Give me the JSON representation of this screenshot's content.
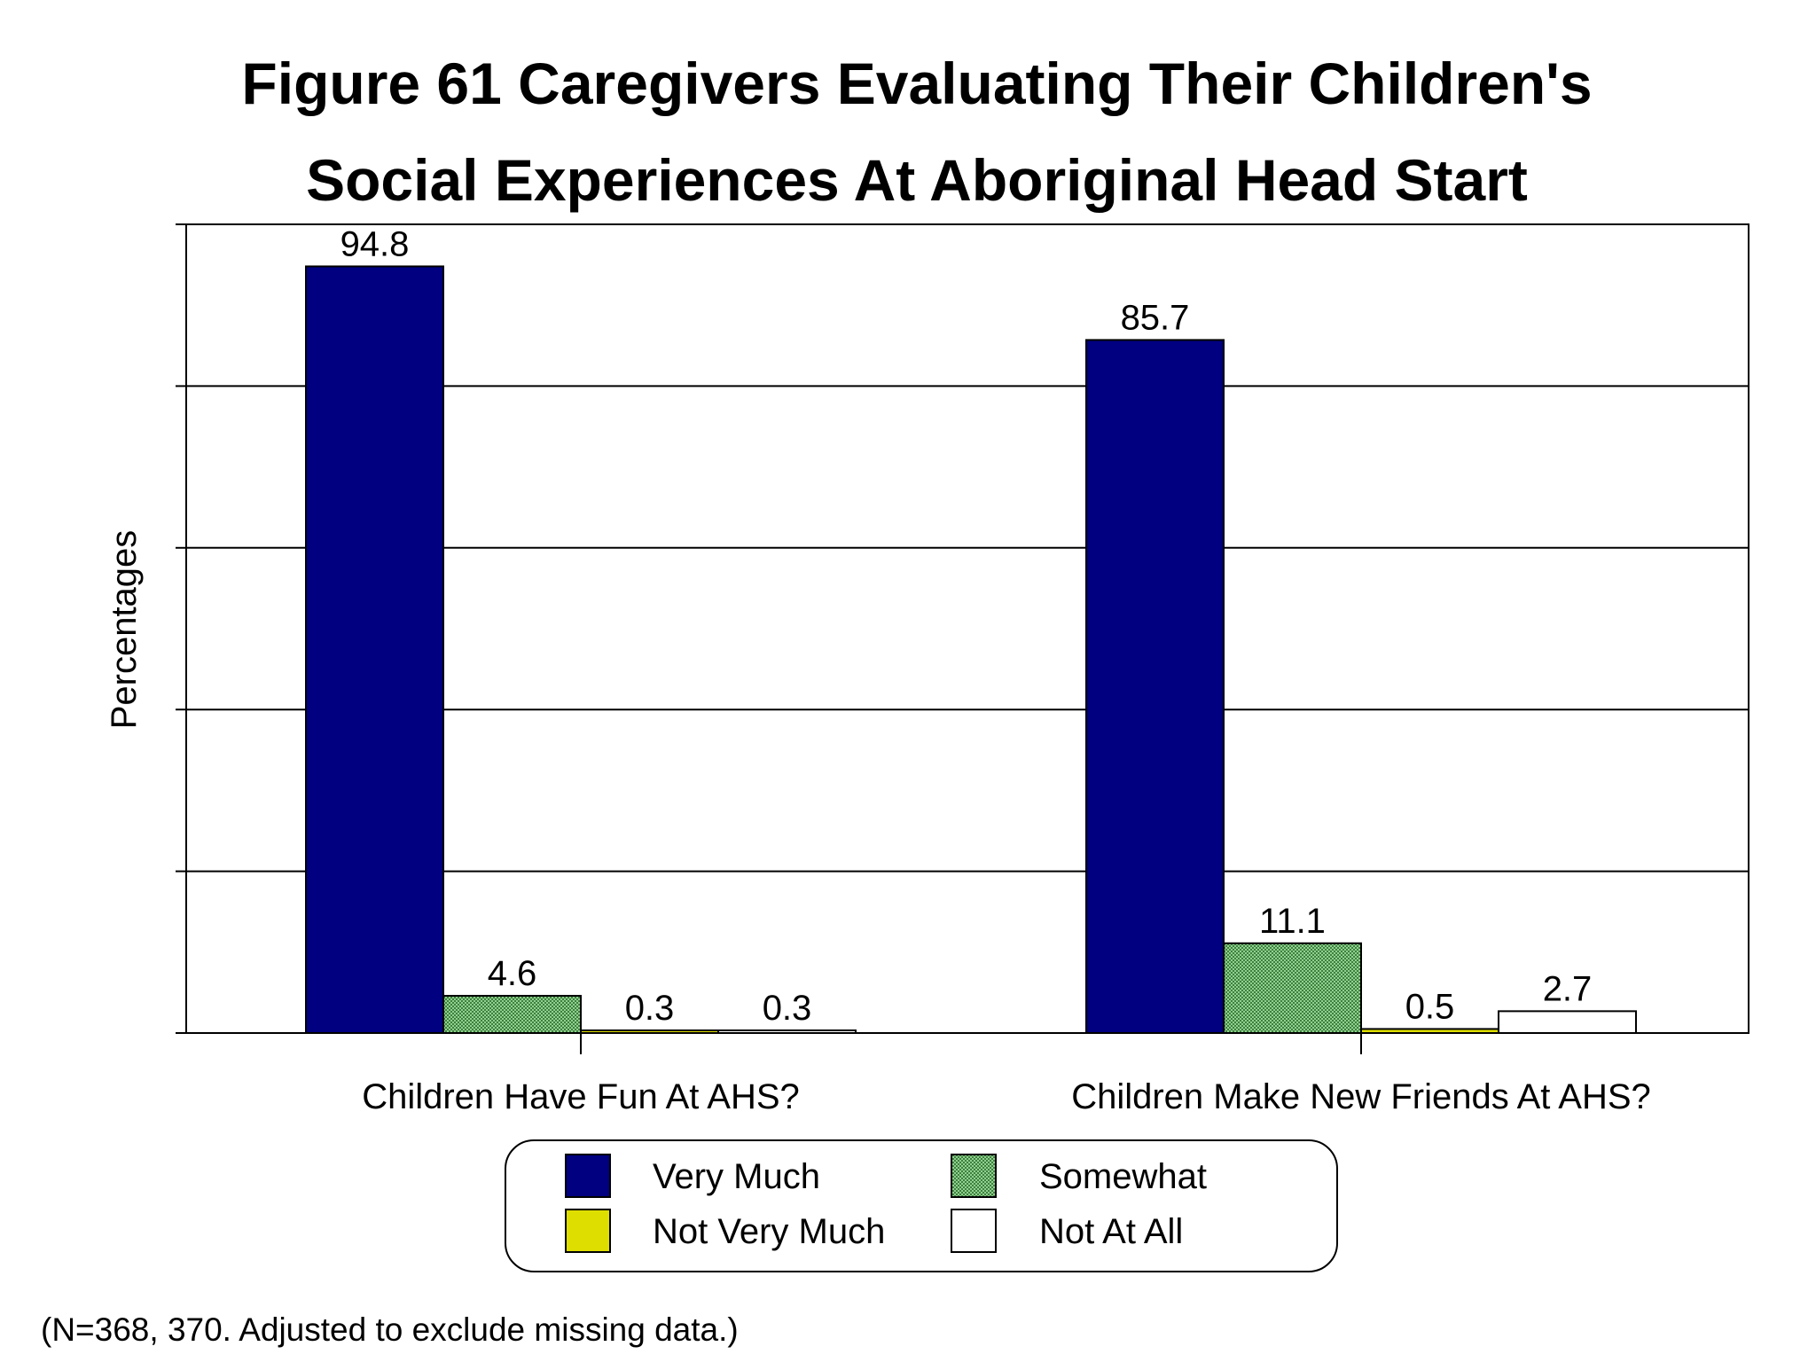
{
  "chart_data": {
    "type": "bar",
    "title_line1": "Figure 61  Caregivers Evaluating Their Children's",
    "title_line2": "Social Experiences At Aboriginal Head Start",
    "ylabel": "Percentages",
    "xlabel": "",
    "ylim": [
      0,
      100
    ],
    "y_gridline_step": 20,
    "categories": [
      "Children Have Fun At AHS?",
      "Children Make New Friends At AHS?"
    ],
    "series": [
      {
        "name": "Very Much",
        "color": "#000080",
        "pattern": "solid",
        "values": [
          94.8,
          85.7
        ],
        "labels": [
          "94.8",
          "85.7"
        ]
      },
      {
        "name": "Somewhat",
        "color": "#7cc07c",
        "pattern": "dotted",
        "values": [
          4.6,
          11.1
        ],
        "labels": [
          "4.6",
          "11.1"
        ]
      },
      {
        "name": "Not Very Much",
        "color": "#dede00",
        "pattern": "solid",
        "values": [
          0.3,
          0.5
        ],
        "labels": [
          "0.3",
          "0.5"
        ]
      },
      {
        "name": "Not At All",
        "color": "#ffffff",
        "pattern": "solid",
        "values": [
          0.3,
          2.7
        ],
        "labels": [
          "0.3",
          "2.7"
        ]
      }
    ],
    "legend_position": "bottom-center",
    "footnote": "(N=368, 370. Adjusted to exclude missing data.)"
  }
}
